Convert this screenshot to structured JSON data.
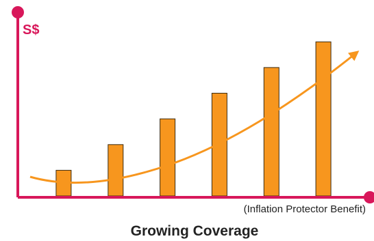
{
  "chart_data": {
    "type": "bar",
    "title": "Growing Coverage",
    "ylabel": "S$",
    "xlabel": "(Inflation Protector Benefit)",
    "categories": [
      "",
      "",
      "",
      "",
      "",
      ""
    ],
    "values": [
      1,
      2,
      3,
      4,
      5,
      6
    ],
    "ylim": [
      0,
      6.3
    ],
    "grid": false,
    "trend_arrow": true,
    "colors": {
      "axis": "#d8175a",
      "bar": "#f7961e",
      "bar_outline": "#3a2a10",
      "trend": "#f7961e",
      "text": "#222222"
    }
  }
}
